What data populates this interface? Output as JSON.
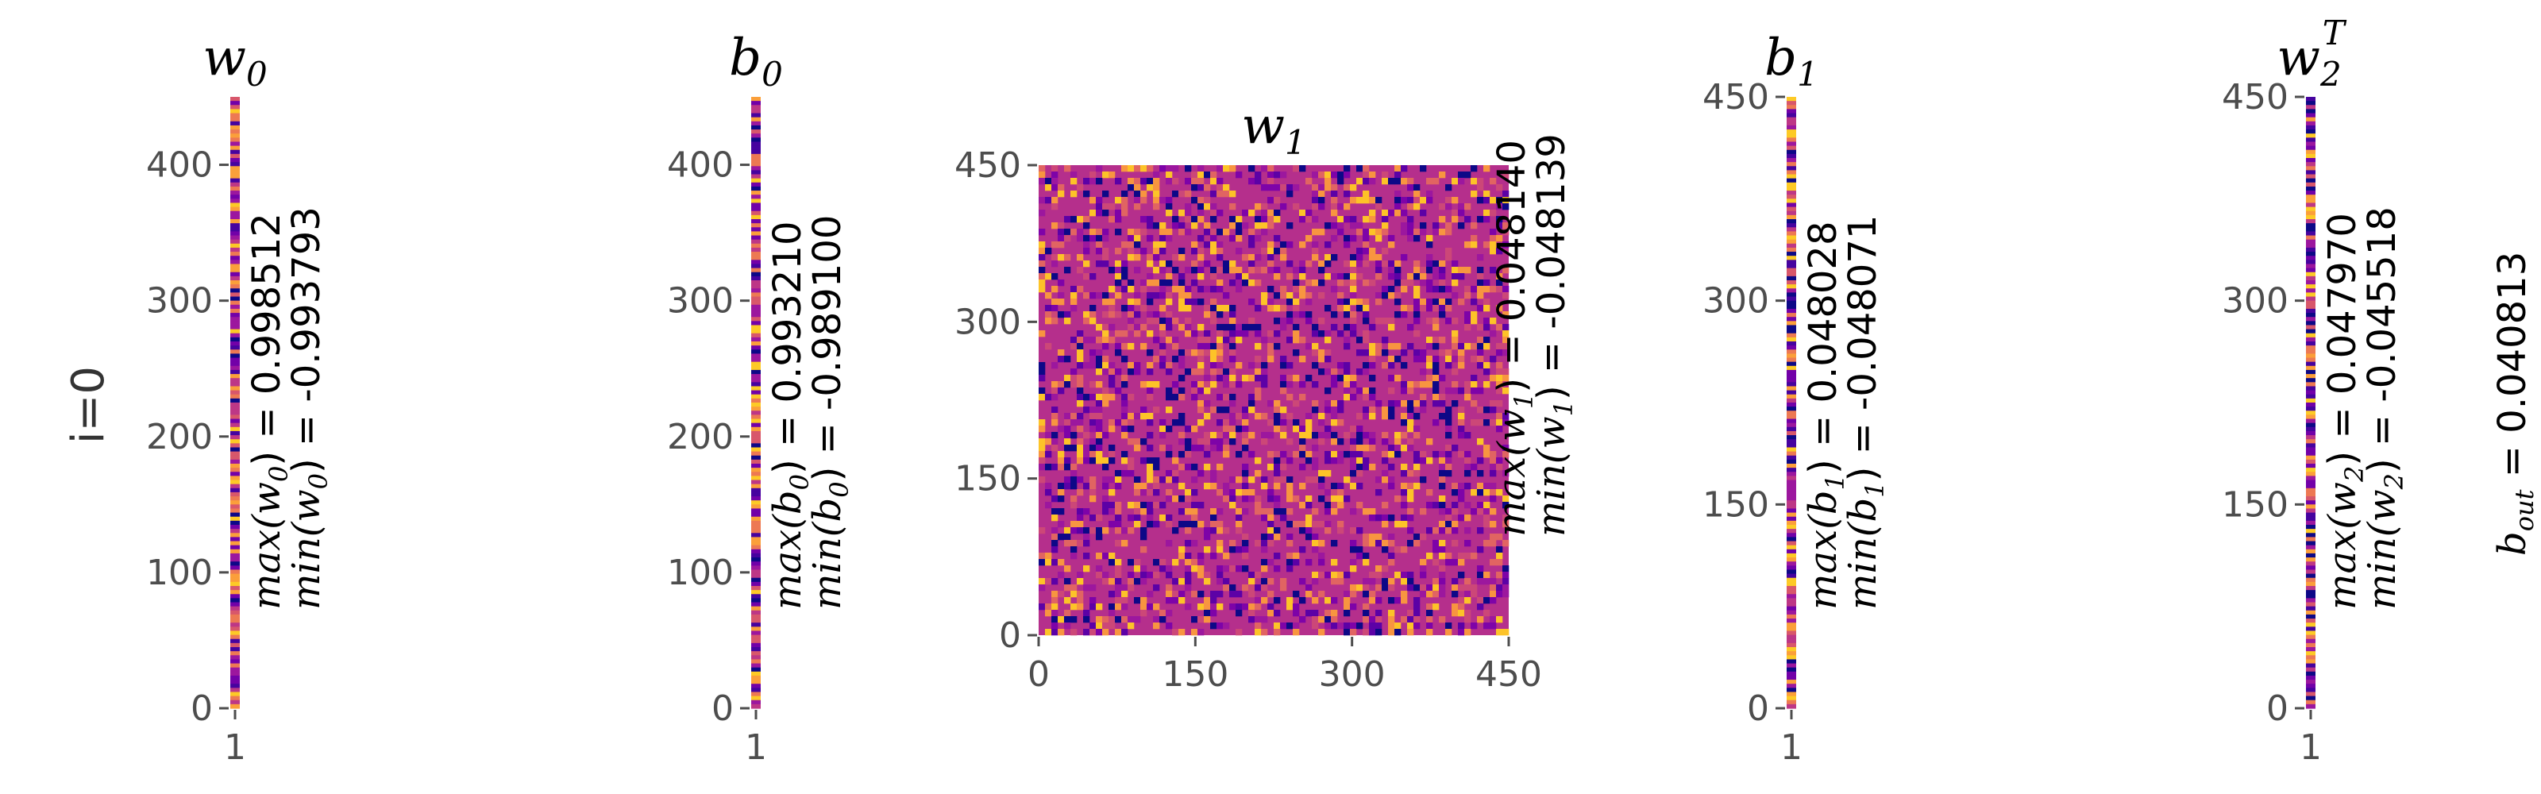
{
  "row_label": "i=0",
  "colors": [
    "#0d0887",
    "#46039f",
    "#7201a8",
    "#9c179e",
    "#bd3786",
    "#d8576b",
    "#ed7953",
    "#fb9f3a",
    "#fdca26"
  ],
  "chart_data": [
    {
      "type": "heatmap",
      "id": "w0",
      "title": "w",
      "title_sub": "0",
      "title_sup": "",
      "cols": 1,
      "rows": 450,
      "xticks": [
        "1"
      ],
      "yticks": [
        0,
        100,
        200,
        300,
        400
      ],
      "ylim": [
        0,
        450
      ],
      "stats": {
        "max_label": "max(w",
        "max_sub": "0",
        "max_value": "0.998512",
        "min_label": "min(w",
        "min_sub": "0",
        "min_value": "-0.993793"
      }
    },
    {
      "type": "heatmap",
      "id": "b0",
      "title": "b",
      "title_sub": "0",
      "title_sup": "",
      "cols": 1,
      "rows": 450,
      "xticks": [
        "1"
      ],
      "yticks": [
        0,
        100,
        200,
        300,
        400
      ],
      "ylim": [
        0,
        450
      ],
      "stats": {
        "max_label": "max(b",
        "max_sub": "0",
        "max_value": "0.993210",
        "min_label": "min(b",
        "min_sub": "0",
        "min_value": "-0.989100"
      }
    },
    {
      "type": "heatmap",
      "id": "w1",
      "title": "w",
      "title_sub": "1",
      "title_sup": "",
      "cols": 450,
      "rows": 450,
      "xticks": [
        0,
        150,
        300,
        450
      ],
      "yticks": [
        0,
        150,
        300,
        450
      ],
      "xlim": [
        0,
        450
      ],
      "ylim": [
        0,
        450
      ],
      "stats": {
        "max_label": "max(w",
        "max_sub": "1",
        "max_value": "0.048140",
        "min_label": "min(w",
        "min_sub": "1",
        "min_value": "-0.048139"
      }
    },
    {
      "type": "heatmap",
      "id": "b1",
      "title": "b",
      "title_sub": "1",
      "title_sup": "",
      "cols": 1,
      "rows": 450,
      "xticks": [
        "1"
      ],
      "yticks": [
        0,
        150,
        300,
        450
      ],
      "ylim": [
        0,
        450
      ],
      "stats": {
        "max_label": "max(b",
        "max_sub": "1",
        "max_value": "0.048028",
        "min_label": "min(b",
        "min_sub": "1",
        "min_value": "-0.048071"
      }
    },
    {
      "type": "heatmap",
      "id": "w2T",
      "title": "w",
      "title_sub": "2",
      "title_sup": "T",
      "cols": 1,
      "rows": 450,
      "xticks": [
        "1"
      ],
      "yticks": [
        0,
        150,
        300,
        450
      ],
      "ylim": [
        0,
        450
      ],
      "stats": {
        "max_label": "max(w",
        "max_sub": "2",
        "max_value": "0.047970",
        "min_label": "min(w",
        "min_sub": "2",
        "min_value": "-0.045518"
      }
    }
  ],
  "b_out": {
    "label": "b",
    "sub": "out",
    "value": "0.040813"
  }
}
